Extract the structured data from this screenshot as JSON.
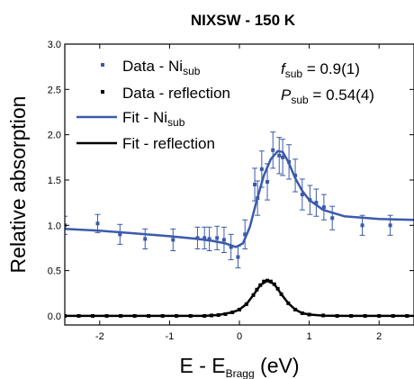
{
  "chart_data": {
    "type": "scatter",
    "title": "NIXSW - 150 K",
    "ylabel": "Relative absorption",
    "xlabel": {
      "main": "E - E",
      "sub": "Bragg",
      "unit": " (eV)"
    },
    "xlim": [
      -2.5,
      2.5
    ],
    "ylim": [
      -0.1,
      3.0
    ],
    "xticks": [
      -2,
      -1,
      0,
      1,
      2
    ],
    "yticks": [
      0.0,
      0.5,
      1.0,
      1.5,
      2.0,
      2.5,
      3.0
    ],
    "xtick_labels": [
      "-2",
      "-1",
      "0",
      "1",
      "2"
    ],
    "ytick_labels": [
      "0.0",
      "0.5",
      "1.0",
      "1.5",
      "2.0",
      "2.5",
      "3.0"
    ],
    "grid": false,
    "legend_position": "top-left",
    "annotations": [
      {
        "sym": "f",
        "sub": "sub",
        "rest": " = 0.9(1)"
      },
      {
        "sym": "P",
        "sub": "sub",
        "rest": " = 0.54(4)"
      }
    ],
    "series": [
      {
        "name": "Data - Ni",
        "name_sub": "sub",
        "kind": "points_errorbars",
        "color": "#3b5aab",
        "x": [
          -2.5,
          -2.03,
          -1.71,
          -1.35,
          -0.95,
          -0.6,
          -0.5,
          -0.43,
          -0.32,
          -0.22,
          -0.12,
          -0.02,
          0.08,
          0.22,
          0.26,
          0.32,
          0.4,
          0.48,
          0.57,
          0.62,
          0.71,
          0.8,
          0.9,
          1.01,
          1.1,
          1.21,
          1.33,
          1.76,
          2.16
        ],
        "y": [
          1.0,
          1.02,
          0.9,
          0.85,
          0.84,
          0.86,
          0.86,
          0.85,
          0.86,
          0.84,
          0.76,
          0.65,
          0.9,
          1.45,
          1.3,
          1.62,
          1.48,
          1.83,
          1.77,
          1.75,
          1.7,
          1.55,
          1.34,
          1.28,
          1.25,
          1.2,
          1.08,
          1.0,
          1.0
        ],
        "err": [
          0.1,
          0.1,
          0.11,
          0.11,
          0.12,
          0.12,
          0.12,
          0.13,
          0.13,
          0.14,
          0.14,
          0.12,
          0.16,
          0.18,
          0.19,
          0.2,
          0.2,
          0.2,
          0.2,
          0.2,
          0.19,
          0.18,
          0.17,
          0.16,
          0.15,
          0.14,
          0.13,
          0.11,
          0.11
        ]
      },
      {
        "name": "Data - reflection",
        "kind": "points",
        "color": "#000000",
        "x": [
          -2.5,
          -2.3,
          -2.1,
          -1.9,
          -1.7,
          -1.5,
          -1.3,
          -1.1,
          -0.9,
          -0.7,
          -0.5,
          -0.4,
          -0.3,
          -0.2,
          -0.1,
          0.0,
          0.1,
          0.2,
          0.25,
          0.3,
          0.35,
          0.4,
          0.45,
          0.5,
          0.55,
          0.6,
          0.7,
          0.8,
          0.9,
          1.0,
          1.2,
          1.4,
          1.6,
          1.8,
          2.0,
          2.2,
          2.4
        ],
        "y": [
          0.0,
          0.0,
          0.0,
          0.0,
          0.0,
          0.0,
          0.0,
          0.0,
          0.0,
          0.0,
          0.0,
          0.005,
          0.01,
          0.02,
          0.04,
          0.07,
          0.13,
          0.23,
          0.29,
          0.34,
          0.38,
          0.39,
          0.38,
          0.35,
          0.3,
          0.24,
          0.14,
          0.07,
          0.03,
          0.015,
          0.005,
          0.0,
          0.0,
          0.0,
          0.0,
          0.0,
          0.0
        ]
      },
      {
        "name": "Fit - Ni",
        "name_sub": "sub",
        "kind": "line",
        "color": "#3b5aab",
        "x": [
          -2.5,
          -2.0,
          -1.5,
          -1.0,
          -0.6,
          -0.4,
          -0.2,
          -0.05,
          0.05,
          0.15,
          0.25,
          0.35,
          0.45,
          0.55,
          0.62,
          0.7,
          0.8,
          0.9,
          1.0,
          1.2,
          1.5,
          2.0,
          2.5
        ],
        "y": [
          0.96,
          0.94,
          0.91,
          0.88,
          0.85,
          0.83,
          0.8,
          0.76,
          0.8,
          0.98,
          1.28,
          1.55,
          1.73,
          1.82,
          1.81,
          1.7,
          1.52,
          1.38,
          1.28,
          1.17,
          1.1,
          1.07,
          1.06
        ]
      },
      {
        "name": "Fit - reflection",
        "kind": "line",
        "color": "#000000",
        "x": [
          -2.5,
          -1.5,
          -0.8,
          -0.5,
          -0.3,
          -0.1,
          0.0,
          0.1,
          0.2,
          0.3,
          0.4,
          0.5,
          0.6,
          0.7,
          0.8,
          0.9,
          1.0,
          1.2,
          1.5,
          2.5
        ],
        "y": [
          0.0,
          0.0,
          0.0,
          0.0,
          0.01,
          0.04,
          0.07,
          0.13,
          0.23,
          0.34,
          0.39,
          0.35,
          0.24,
          0.14,
          0.07,
          0.03,
          0.015,
          0.003,
          0.0,
          0.0
        ]
      }
    ]
  }
}
